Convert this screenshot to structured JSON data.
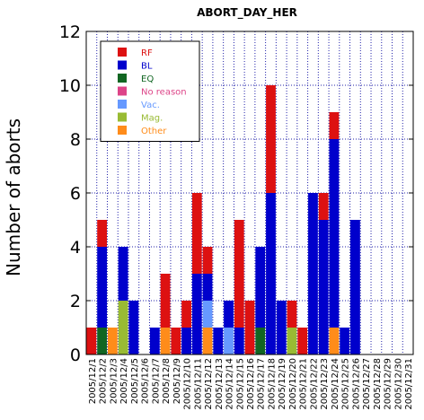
{
  "chart_data": {
    "type": "bar",
    "stacked": true,
    "title": "ABORT_DAY_HER",
    "xlabel": "",
    "ylabel": "Number of aborts",
    "ylim": [
      0,
      12
    ],
    "yticks": [
      0,
      2,
      4,
      6,
      8,
      10,
      12
    ],
    "grid": true,
    "legend_position": "top-left",
    "categories": [
      "2005/12/1",
      "2005/12/2",
      "2005/12/3",
      "2005/12/4",
      "2005/12/5",
      "2005/12/6",
      "2005/12/7",
      "2005/12/8",
      "2005/12/9",
      "2005/12/10",
      "2005/12/11",
      "2005/12/12",
      "2005/12/13",
      "2005/12/14",
      "2005/12/15",
      "2005/12/16",
      "2005/12/17",
      "2005/12/18",
      "2005/12/19",
      "2005/12/20",
      "2005/12/21",
      "2005/12/22",
      "2005/12/23",
      "2005/12/24",
      "2005/12/25",
      "2005/12/26",
      "2005/12/27",
      "2005/12/28",
      "2005/12/29",
      "2005/12/30",
      "2005/12/31"
    ],
    "series": [
      {
        "name": "Other",
        "color": "#ff8c1a",
        "values": [
          0,
          0,
          1,
          0,
          0,
          0,
          0,
          1,
          0,
          0,
          0,
          1,
          0,
          0,
          0,
          0,
          0,
          0,
          0,
          0,
          0,
          0,
          0,
          1,
          0,
          0,
          0,
          0,
          0,
          0,
          0
        ]
      },
      {
        "name": "Mag.",
        "color": "#99bb33",
        "values": [
          0,
          0,
          0,
          2,
          0,
          0,
          0,
          0,
          0,
          0,
          0,
          0,
          0,
          0,
          0,
          0,
          0,
          0,
          0,
          1,
          0,
          0,
          0,
          0,
          0,
          0,
          0,
          0,
          0,
          0,
          0
        ]
      },
      {
        "name": "Vac.",
        "color": "#6699ff",
        "values": [
          0,
          0,
          0,
          0,
          0,
          0,
          0,
          0,
          0,
          0,
          0,
          1,
          0,
          1,
          0,
          0,
          0,
          0,
          0,
          0,
          0,
          0,
          0,
          0,
          0,
          0,
          0,
          0,
          0,
          0,
          0
        ]
      },
      {
        "name": "No reason",
        "color": "#dd4488",
        "values": [
          0,
          0,
          0,
          0,
          0,
          0,
          0,
          0,
          0,
          0,
          0,
          0,
          0,
          0,
          0,
          0,
          0,
          0,
          0,
          0,
          0,
          0,
          0,
          0,
          0,
          0,
          0,
          0,
          0,
          0,
          0
        ]
      },
      {
        "name": "EQ",
        "color": "#116622",
        "values": [
          0,
          1,
          0,
          0,
          0,
          0,
          0,
          0,
          0,
          0,
          0,
          0,
          0,
          0,
          0,
          0,
          1,
          0,
          0,
          0,
          0,
          0,
          0,
          0,
          0,
          0,
          0,
          0,
          0,
          0,
          0
        ]
      },
      {
        "name": "BL",
        "color": "#0000cc",
        "values": [
          0,
          3,
          0,
          2,
          2,
          0,
          1,
          0,
          0,
          1,
          3,
          1,
          1,
          1,
          1,
          0,
          3,
          6,
          2,
          0,
          0,
          6,
          5,
          7,
          1,
          5,
          0,
          0,
          0,
          0,
          0
        ]
      },
      {
        "name": "RF",
        "color": "#dd1111",
        "values": [
          1,
          1,
          0,
          0,
          0,
          0,
          0,
          2,
          1,
          1,
          3,
          1,
          0,
          0,
          4,
          2,
          0,
          4,
          0,
          1,
          1,
          0,
          1,
          1,
          0,
          0,
          0,
          0,
          0,
          0,
          0
        ]
      }
    ],
    "legend_order": [
      "RF",
      "BL",
      "EQ",
      "No reason",
      "Vac.",
      "Mag.",
      "Other"
    ]
  }
}
